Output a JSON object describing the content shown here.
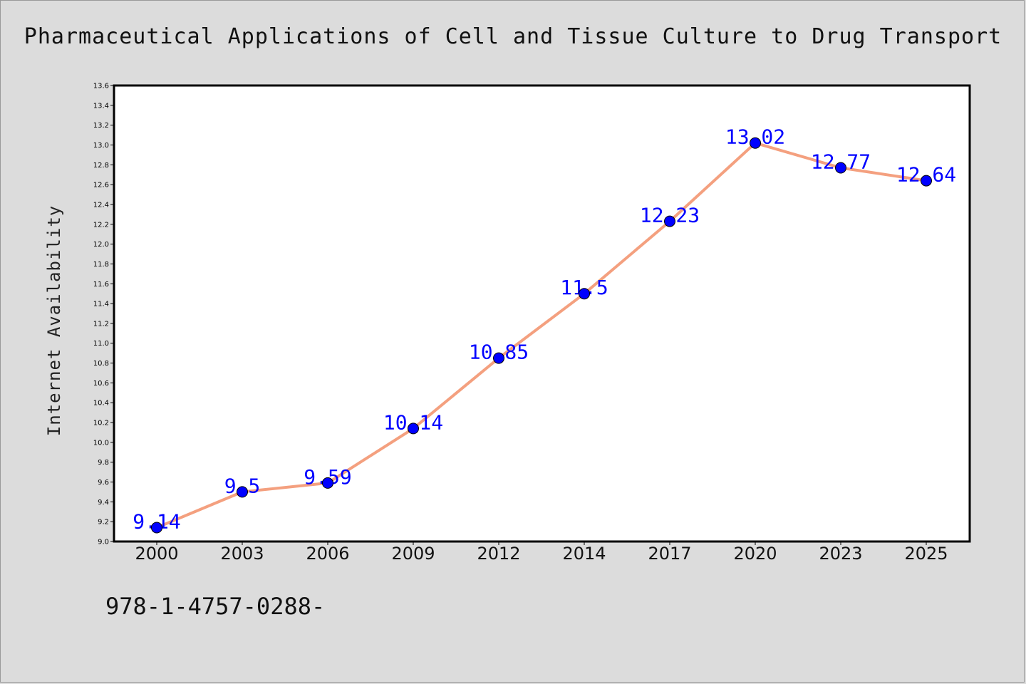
{
  "chart_data": {
    "type": "line",
    "title": "Pharmaceutical Applications of Cell and Tissue Culture to Drug Transport",
    "xlabel": "",
    "ylabel": "Internet Availability",
    "categories": [
      "2000",
      "2003",
      "2006",
      "2009",
      "2012",
      "2014",
      "2017",
      "2020",
      "2023",
      "2025"
    ],
    "series": [
      {
        "values": [
          9.14,
          9.5,
          9.59,
          10.14,
          10.85,
          11.5,
          12.23,
          13.02,
          12.77,
          12.64
        ],
        "labels": [
          "9.14",
          "9.5",
          "9.59",
          "10.14",
          "10.85",
          "11.5",
          "12.23",
          "13.02",
          "12.77",
          "12.64"
        ],
        "line_color": "#f4a07f",
        "marker_color": "#0000ff",
        "label_color": "#0000ff"
      }
    ],
    "ylim": [
      9.0,
      13.6
    ],
    "yticks": [
      "9.0",
      "9.2",
      "9.4",
      "9.6",
      "9.8",
      "10.0",
      "10.2",
      "10.4",
      "10.6",
      "10.8",
      "11.0",
      "11.2",
      "11.4",
      "11.6",
      "11.8",
      "12.0",
      "12.2",
      "12.4",
      "12.6",
      "12.8",
      "13.0",
      "13.2",
      "13.4",
      "13.6"
    ],
    "grid": false,
    "legend": "none"
  },
  "footer": {
    "text": "978-1-4757-0288-"
  },
  "colors": {
    "background": "#dcdcdc",
    "plot_background": "#ffffff",
    "axis": "#000000"
  }
}
